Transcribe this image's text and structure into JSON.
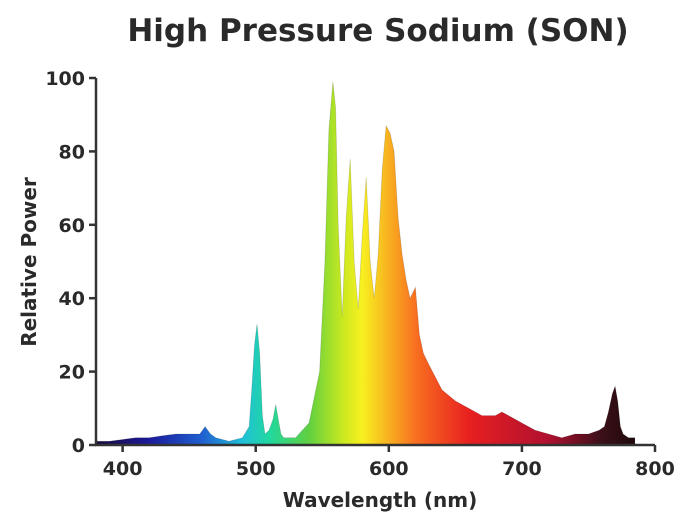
{
  "chart_data": {
    "type": "area",
    "title": "High Pressure Sodium (SON)",
    "xlabel": "Wavelength (nm)",
    "ylabel": "Relative Power",
    "xlim": [
      380,
      800
    ],
    "ylim": [
      0,
      100
    ],
    "x_ticks": [
      400,
      500,
      600,
      700,
      800
    ],
    "y_ticks": [
      0,
      20,
      40,
      60,
      80,
      100
    ],
    "grid": false,
    "legend": "none",
    "fill": "spectral-gradient",
    "spectrum_colors": {
      "380": "#1a0a3c",
      "420": "#1a1a9a",
      "460": "#2060d0",
      "490": "#20c0d8",
      "510": "#20d8a0",
      "540": "#60d040",
      "565": "#c8e820",
      "580": "#f8f020",
      "600": "#f8b020",
      "620": "#f87020",
      "660": "#e82020",
      "720": "#b01030",
      "760": "#3a1018",
      "790": "#1a0808"
    },
    "series": [
      {
        "x": [
          380,
          390,
          400,
          410,
          420,
          430,
          440,
          450,
          458,
          462,
          466,
          470,
          480,
          490,
          495,
          497,
          499,
          501,
          503,
          505,
          507,
          510,
          513,
          515,
          517,
          519,
          521,
          525,
          530,
          540,
          548,
          552,
          555,
          558,
          560,
          562,
          565,
          568,
          571,
          574,
          577,
          580,
          583,
          586,
          589,
          592,
          595,
          598,
          601,
          604,
          607,
          610,
          613,
          616,
          620,
          623,
          626,
          630,
          640,
          650,
          660,
          670,
          680,
          685,
          690,
          700,
          710,
          720,
          730,
          740,
          750,
          758,
          762,
          765,
          768,
          770,
          772,
          774,
          776,
          780,
          785
        ],
        "y": [
          1,
          1,
          1.5,
          2,
          2,
          2.5,
          3,
          3,
          3,
          5,
          3,
          2,
          1,
          2,
          5,
          15,
          27,
          33,
          25,
          8,
          3,
          4,
          7,
          11,
          7,
          3,
          2,
          2,
          2,
          6,
          20,
          50,
          86,
          99,
          92,
          60,
          35,
          62,
          78,
          50,
          37,
          57,
          73,
          50,
          40,
          52,
          75,
          87,
          85,
          80,
          62,
          52,
          45,
          40,
          43,
          30,
          25,
          22,
          15,
          12,
          10,
          8,
          8,
          9,
          8,
          6,
          4,
          3,
          2,
          3,
          3,
          4,
          5,
          9,
          14,
          16,
          12,
          5,
          3,
          2,
          2
        ]
      }
    ]
  }
}
